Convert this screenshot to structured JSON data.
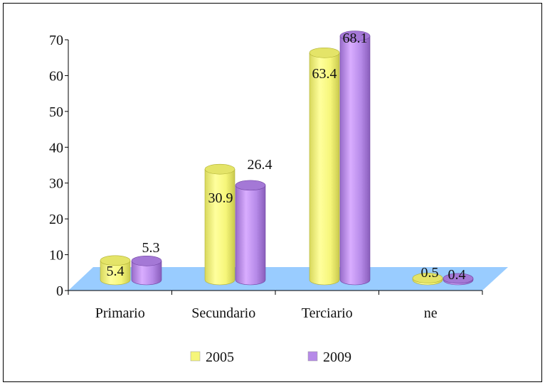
{
  "chart_data": {
    "type": "bar",
    "categories": [
      "Primario",
      "Secundario",
      "Terciario",
      "ne"
    ],
    "series": [
      {
        "name": "2005",
        "values": [
          5.4,
          30.9,
          63.4,
          0.5
        ],
        "color": "#f6f67a"
      },
      {
        "name": "2009",
        "values": [
          5.3,
          26.4,
          68.1,
          0.4
        ],
        "color": "#b68ae8"
      }
    ],
    "yticks": [
      "0",
      "10",
      "20",
      "30",
      "40",
      "50",
      "60",
      "70"
    ],
    "ylim": [
      0,
      70
    ],
    "legend_position": "bottom",
    "floor_color": "#99ccff",
    "style": "3d-cylinder"
  }
}
